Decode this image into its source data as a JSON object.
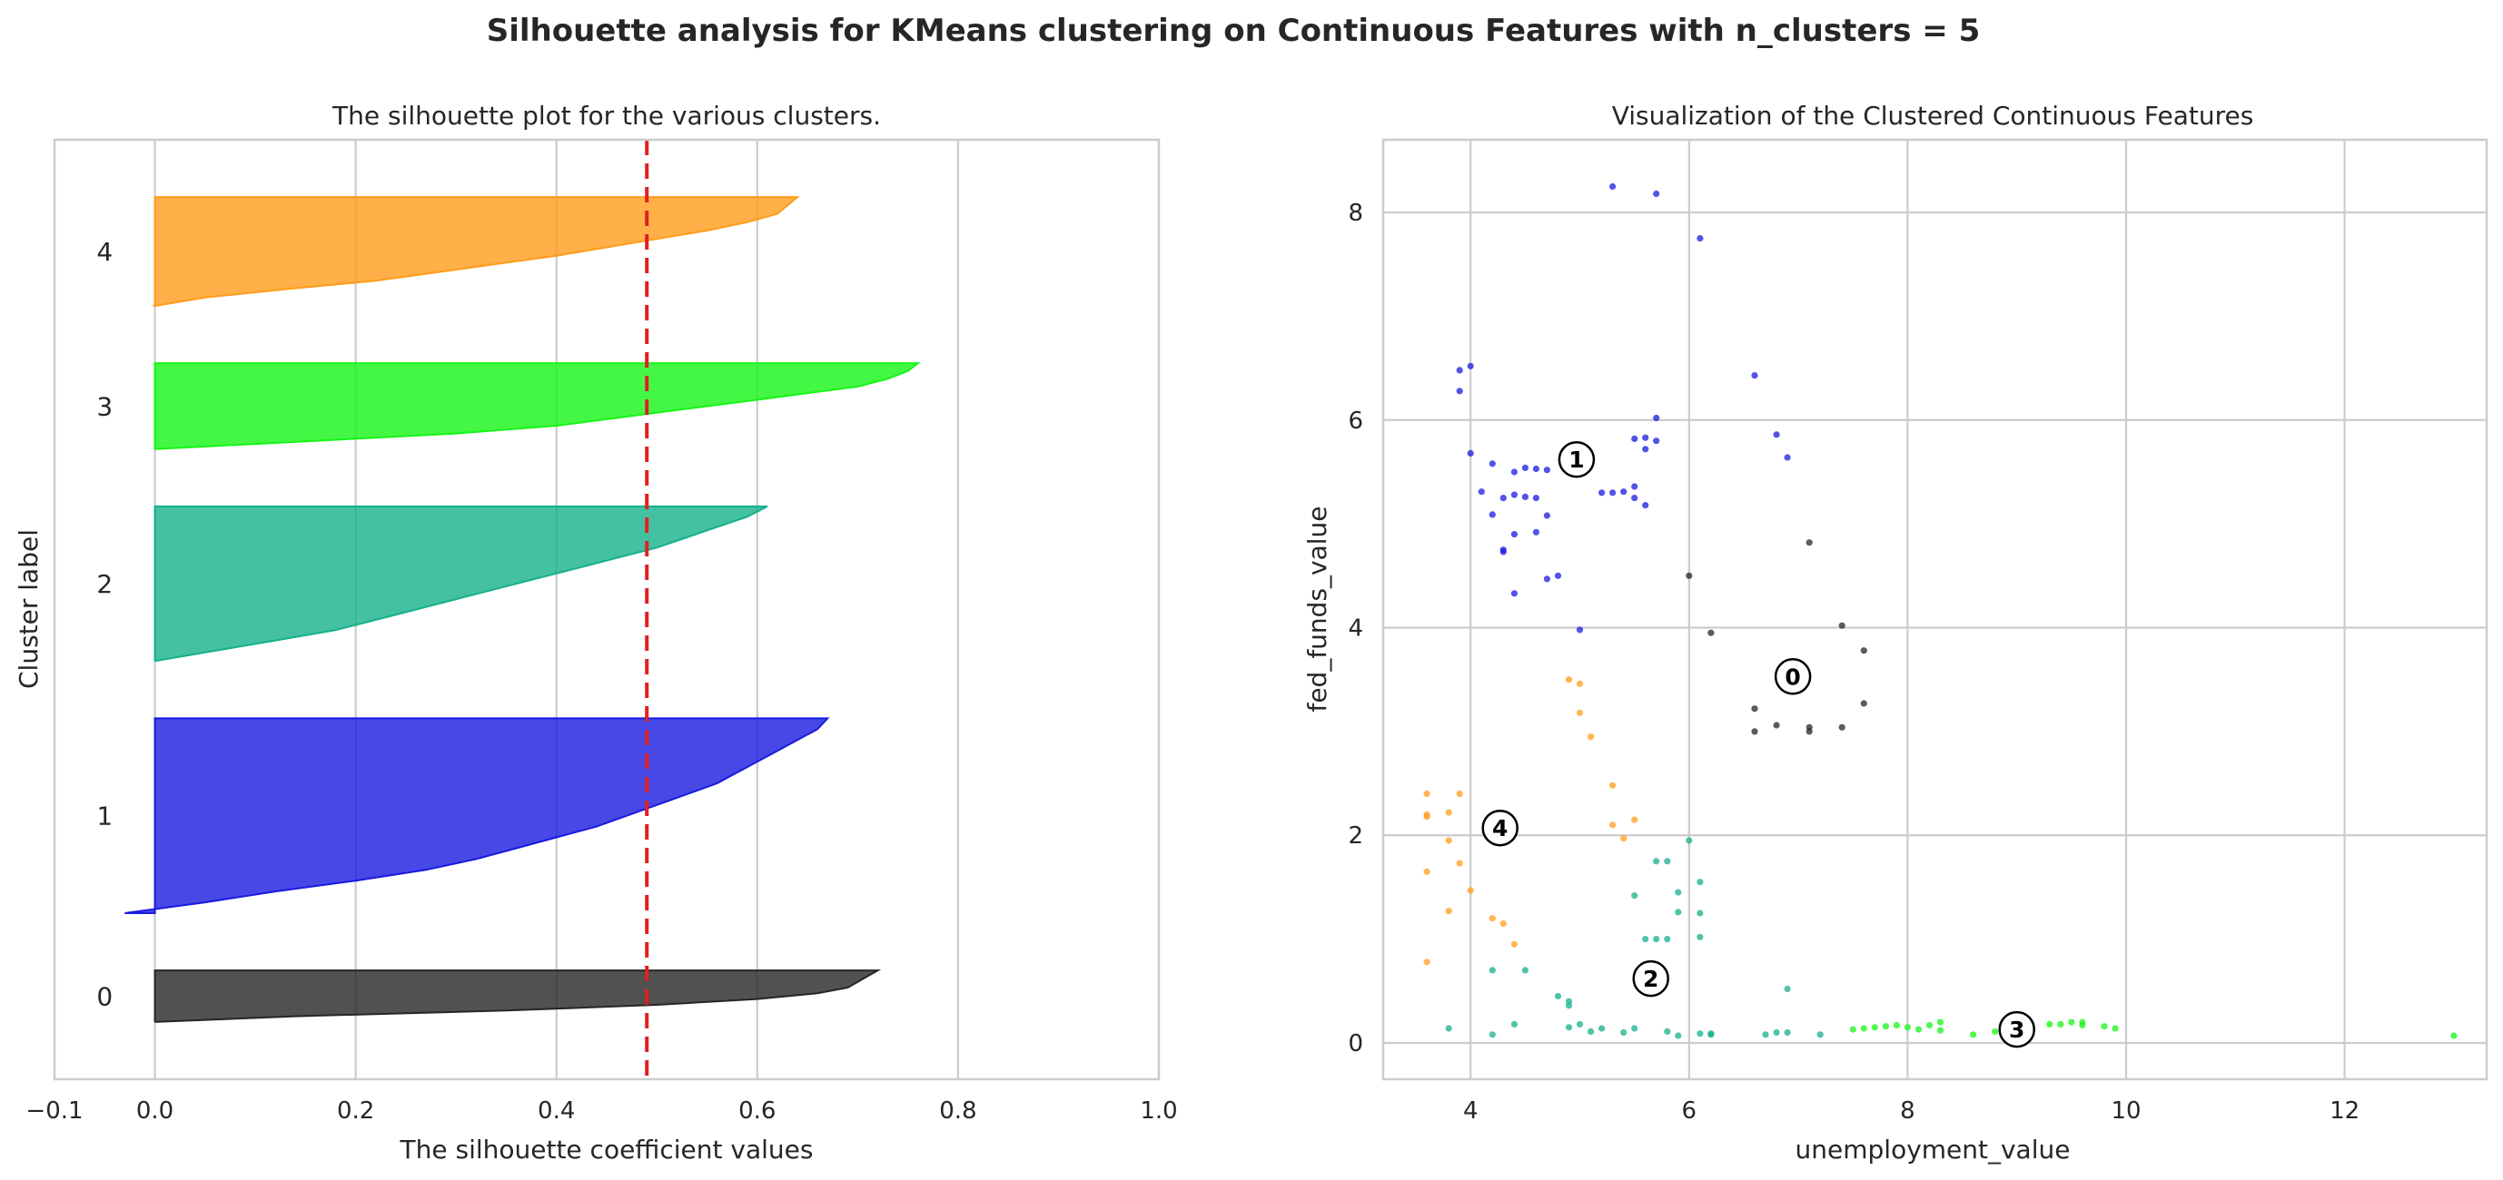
{
  "figure": {
    "suptitle": "Silhouette analysis for KMeans clustering on Continuous Features with n_clusters = 5"
  },
  "colors": {
    "cluster_0": "#262626",
    "cluster_1": "#1a1ae0",
    "cluster_2": "#15b08c",
    "cluster_3": "#16f516",
    "cluster_4": "#ff9c1a",
    "avg_line": "#e02020",
    "grid": "#cccccc"
  },
  "chart_data": [
    {
      "type": "area",
      "title": "The silhouette plot for the various clusters.",
      "xlabel": "The silhouette coefficient values",
      "ylabel": "Cluster label",
      "xlim": [
        -0.1,
        1.0
      ],
      "xticks": [
        "−0.1",
        "0.0",
        "0.2",
        "0.4",
        "0.6",
        "0.8",
        "1.0"
      ],
      "grid": true,
      "average_silhouette": 0.49,
      "clusters": [
        {
          "label": "0",
          "color_key": "cluster_0",
          "y_lower": 10,
          "y_upper": 19,
          "values_desc": [
            0.72,
            0.71,
            0.7,
            0.69,
            0.66,
            0.6,
            0.5,
            0.35,
            0.14,
            0.0
          ]
        },
        {
          "label": "1",
          "color_key": "cluster_1",
          "y_lower": 29,
          "y_upper": 63,
          "values_desc": [
            0.67,
            0.66,
            0.64,
            0.62,
            0.6,
            0.58,
            0.56,
            0.53,
            0.5,
            0.47,
            0.44,
            0.4,
            0.36,
            0.32,
            0.27,
            0.2,
            0.12,
            0.05,
            -0.03
          ]
        },
        {
          "label": "2",
          "color_key": "cluster_2",
          "y_lower": 73,
          "y_upper": 100,
          "values_desc": [
            0.61,
            0.59,
            0.56,
            0.53,
            0.5,
            0.46,
            0.42,
            0.38,
            0.34,
            0.3,
            0.26,
            0.22,
            0.18,
            0.12,
            0.06,
            0.0
          ]
        },
        {
          "label": "3",
          "color_key": "cluster_3",
          "y_lower": 110,
          "y_upper": 125,
          "values_desc": [
            0.76,
            0.75,
            0.73,
            0.7,
            0.64,
            0.58,
            0.52,
            0.46,
            0.4,
            0.3,
            0.15,
            0.0
          ]
        },
        {
          "label": "4",
          "color_key": "cluster_4",
          "y_lower": 135,
          "y_upper": 154,
          "values_desc": [
            0.64,
            0.63,
            0.62,
            0.59,
            0.55,
            0.5,
            0.45,
            0.4,
            0.34,
            0.28,
            0.22,
            0.13,
            0.05,
            0.0
          ]
        }
      ]
    },
    {
      "type": "scatter",
      "title": "Visualization of the Clustered Continuous Features",
      "xlabel": "unemployment_value",
      "ylabel": "fed_funds_value",
      "xlim": [
        3.2,
        13.3
      ],
      "ylim": [
        -0.35,
        8.7
      ],
      "xticks": [
        "4",
        "6",
        "8",
        "10",
        "12"
      ],
      "yticks": [
        "0",
        "2",
        "4",
        "6",
        "8"
      ],
      "grid": true,
      "centers": [
        {
          "label": "0",
          "x": 6.95,
          "y": 3.53
        },
        {
          "label": "1",
          "x": 4.97,
          "y": 5.62
        },
        {
          "label": "2",
          "x": 5.65,
          "y": 0.62
        },
        {
          "label": "3",
          "x": 9.0,
          "y": 0.13
        },
        {
          "label": "4",
          "x": 4.27,
          "y": 2.07
        }
      ],
      "series": [
        {
          "name": "0",
          "color_key": "cluster_0",
          "points": [
            [
              6.0,
              4.5
            ],
            [
              7.1,
              4.82
            ],
            [
              6.2,
              3.95
            ],
            [
              7.4,
              4.02
            ],
            [
              7.6,
              3.78
            ],
            [
              6.6,
              3.22
            ],
            [
              6.8,
              3.06
            ],
            [
              7.1,
              3.04
            ],
            [
              7.1,
              3.0
            ],
            [
              6.6,
              3.0
            ],
            [
              7.4,
              3.04
            ],
            [
              7.6,
              3.27
            ]
          ]
        },
        {
          "name": "1",
          "color_key": "cluster_1",
          "points": [
            [
              5.3,
              8.25
            ],
            [
              5.7,
              8.18
            ],
            [
              6.1,
              7.75
            ],
            [
              3.9,
              6.48
            ],
            [
              4.0,
              6.52
            ],
            [
              3.9,
              6.28
            ],
            [
              6.6,
              6.43
            ],
            [
              5.7,
              6.02
            ],
            [
              5.6,
              5.83
            ],
            [
              5.5,
              5.82
            ],
            [
              5.7,
              5.8
            ],
            [
              6.8,
              5.86
            ],
            [
              4.0,
              5.68
            ],
            [
              5.6,
              5.72
            ],
            [
              6.9,
              5.64
            ],
            [
              4.2,
              5.58
            ],
            [
              4.4,
              5.5
            ],
            [
              4.5,
              5.54
            ],
            [
              4.6,
              5.53
            ],
            [
              4.7,
              5.52
            ],
            [
              4.1,
              5.31
            ],
            [
              4.3,
              5.25
            ],
            [
              4.5,
              5.26
            ],
            [
              4.4,
              5.28
            ],
            [
              4.6,
              5.25
            ],
            [
              5.2,
              5.3
            ],
            [
              5.3,
              5.3
            ],
            [
              5.4,
              5.31
            ],
            [
              5.5,
              5.36
            ],
            [
              5.5,
              5.25
            ],
            [
              5.6,
              5.18
            ],
            [
              4.2,
              5.09
            ],
            [
              4.7,
              5.08
            ],
            [
              4.4,
              4.9
            ],
            [
              4.6,
              4.92
            ],
            [
              4.3,
              4.75
            ],
            [
              4.3,
              4.73
            ],
            [
              4.7,
              4.47
            ],
            [
              4.8,
              4.5
            ],
            [
              4.4,
              4.33
            ],
            [
              5.0,
              3.98
            ]
          ]
        },
        {
          "name": "2",
          "color_key": "cluster_2",
          "points": [
            [
              6.0,
              1.95
            ],
            [
              5.7,
              1.75
            ],
            [
              5.8,
              1.75
            ],
            [
              5.9,
              1.45
            ],
            [
              6.1,
              1.55
            ],
            [
              5.5,
              1.42
            ],
            [
              5.9,
              1.26
            ],
            [
              6.1,
              1.25
            ],
            [
              5.6,
              1.0
            ],
            [
              5.7,
              1.0
            ],
            [
              5.8,
              1.0
            ],
            [
              6.1,
              1.02
            ],
            [
              4.2,
              0.7
            ],
            [
              4.5,
              0.7
            ],
            [
              4.8,
              0.45
            ],
            [
              4.9,
              0.4
            ],
            [
              4.9,
              0.36
            ],
            [
              6.9,
              0.52
            ],
            [
              5.0,
              0.18
            ],
            [
              5.2,
              0.14
            ],
            [
              5.5,
              0.14
            ],
            [
              5.8,
              0.11
            ],
            [
              5.9,
              0.07
            ],
            [
              6.1,
              0.09
            ],
            [
              6.2,
              0.09
            ],
            [
              6.2,
              0.08
            ],
            [
              3.8,
              0.14
            ],
            [
              4.2,
              0.08
            ],
            [
              5.1,
              0.11
            ],
            [
              6.7,
              0.08
            ],
            [
              6.8,
              0.1
            ],
            [
              6.9,
              0.1
            ],
            [
              7.2,
              0.08
            ],
            [
              4.4,
              0.18
            ],
            [
              4.9,
              0.15
            ],
            [
              5.4,
              0.1
            ]
          ]
        },
        {
          "name": "3",
          "color_key": "cluster_3",
          "points": [
            [
              7.5,
              0.13
            ],
            [
              7.6,
              0.14
            ],
            [
              7.8,
              0.16
            ],
            [
              7.9,
              0.17
            ],
            [
              8.0,
              0.15
            ],
            [
              8.2,
              0.17
            ],
            [
              8.3,
              0.2
            ],
            [
              8.3,
              0.12
            ],
            [
              8.1,
              0.13
            ],
            [
              8.6,
              0.08
            ],
            [
              8.8,
              0.11
            ],
            [
              8.9,
              0.09
            ],
            [
              9.1,
              0.14
            ],
            [
              9.3,
              0.18
            ],
            [
              9.5,
              0.2
            ],
            [
              9.6,
              0.2
            ],
            [
              9.6,
              0.17
            ],
            [
              9.8,
              0.16
            ],
            [
              9.9,
              0.14
            ],
            [
              13.0,
              0.07
            ],
            [
              7.7,
              0.15
            ],
            [
              9.4,
              0.18
            ]
          ]
        },
        {
          "name": "4",
          "color_key": "cluster_4",
          "points": [
            [
              4.9,
              3.5
            ],
            [
              5.0,
              3.46
            ],
            [
              5.0,
              3.18
            ],
            [
              5.1,
              2.95
            ],
            [
              5.3,
              2.48
            ],
            [
              5.3,
              2.1
            ],
            [
              5.5,
              2.15
            ],
            [
              5.4,
              1.97
            ],
            [
              3.6,
              2.4
            ],
            [
              3.9,
              2.4
            ],
            [
              3.8,
              2.22
            ],
            [
              3.6,
              2.2
            ],
            [
              3.6,
              2.18
            ],
            [
              3.8,
              1.95
            ],
            [
              3.9,
              1.73
            ],
            [
              3.6,
              1.65
            ],
            [
              4.0,
              1.47
            ],
            [
              3.8,
              1.27
            ],
            [
              4.2,
              1.2
            ],
            [
              4.3,
              1.15
            ],
            [
              4.4,
              0.95
            ],
            [
              3.6,
              0.78
            ]
          ]
        }
      ]
    }
  ]
}
